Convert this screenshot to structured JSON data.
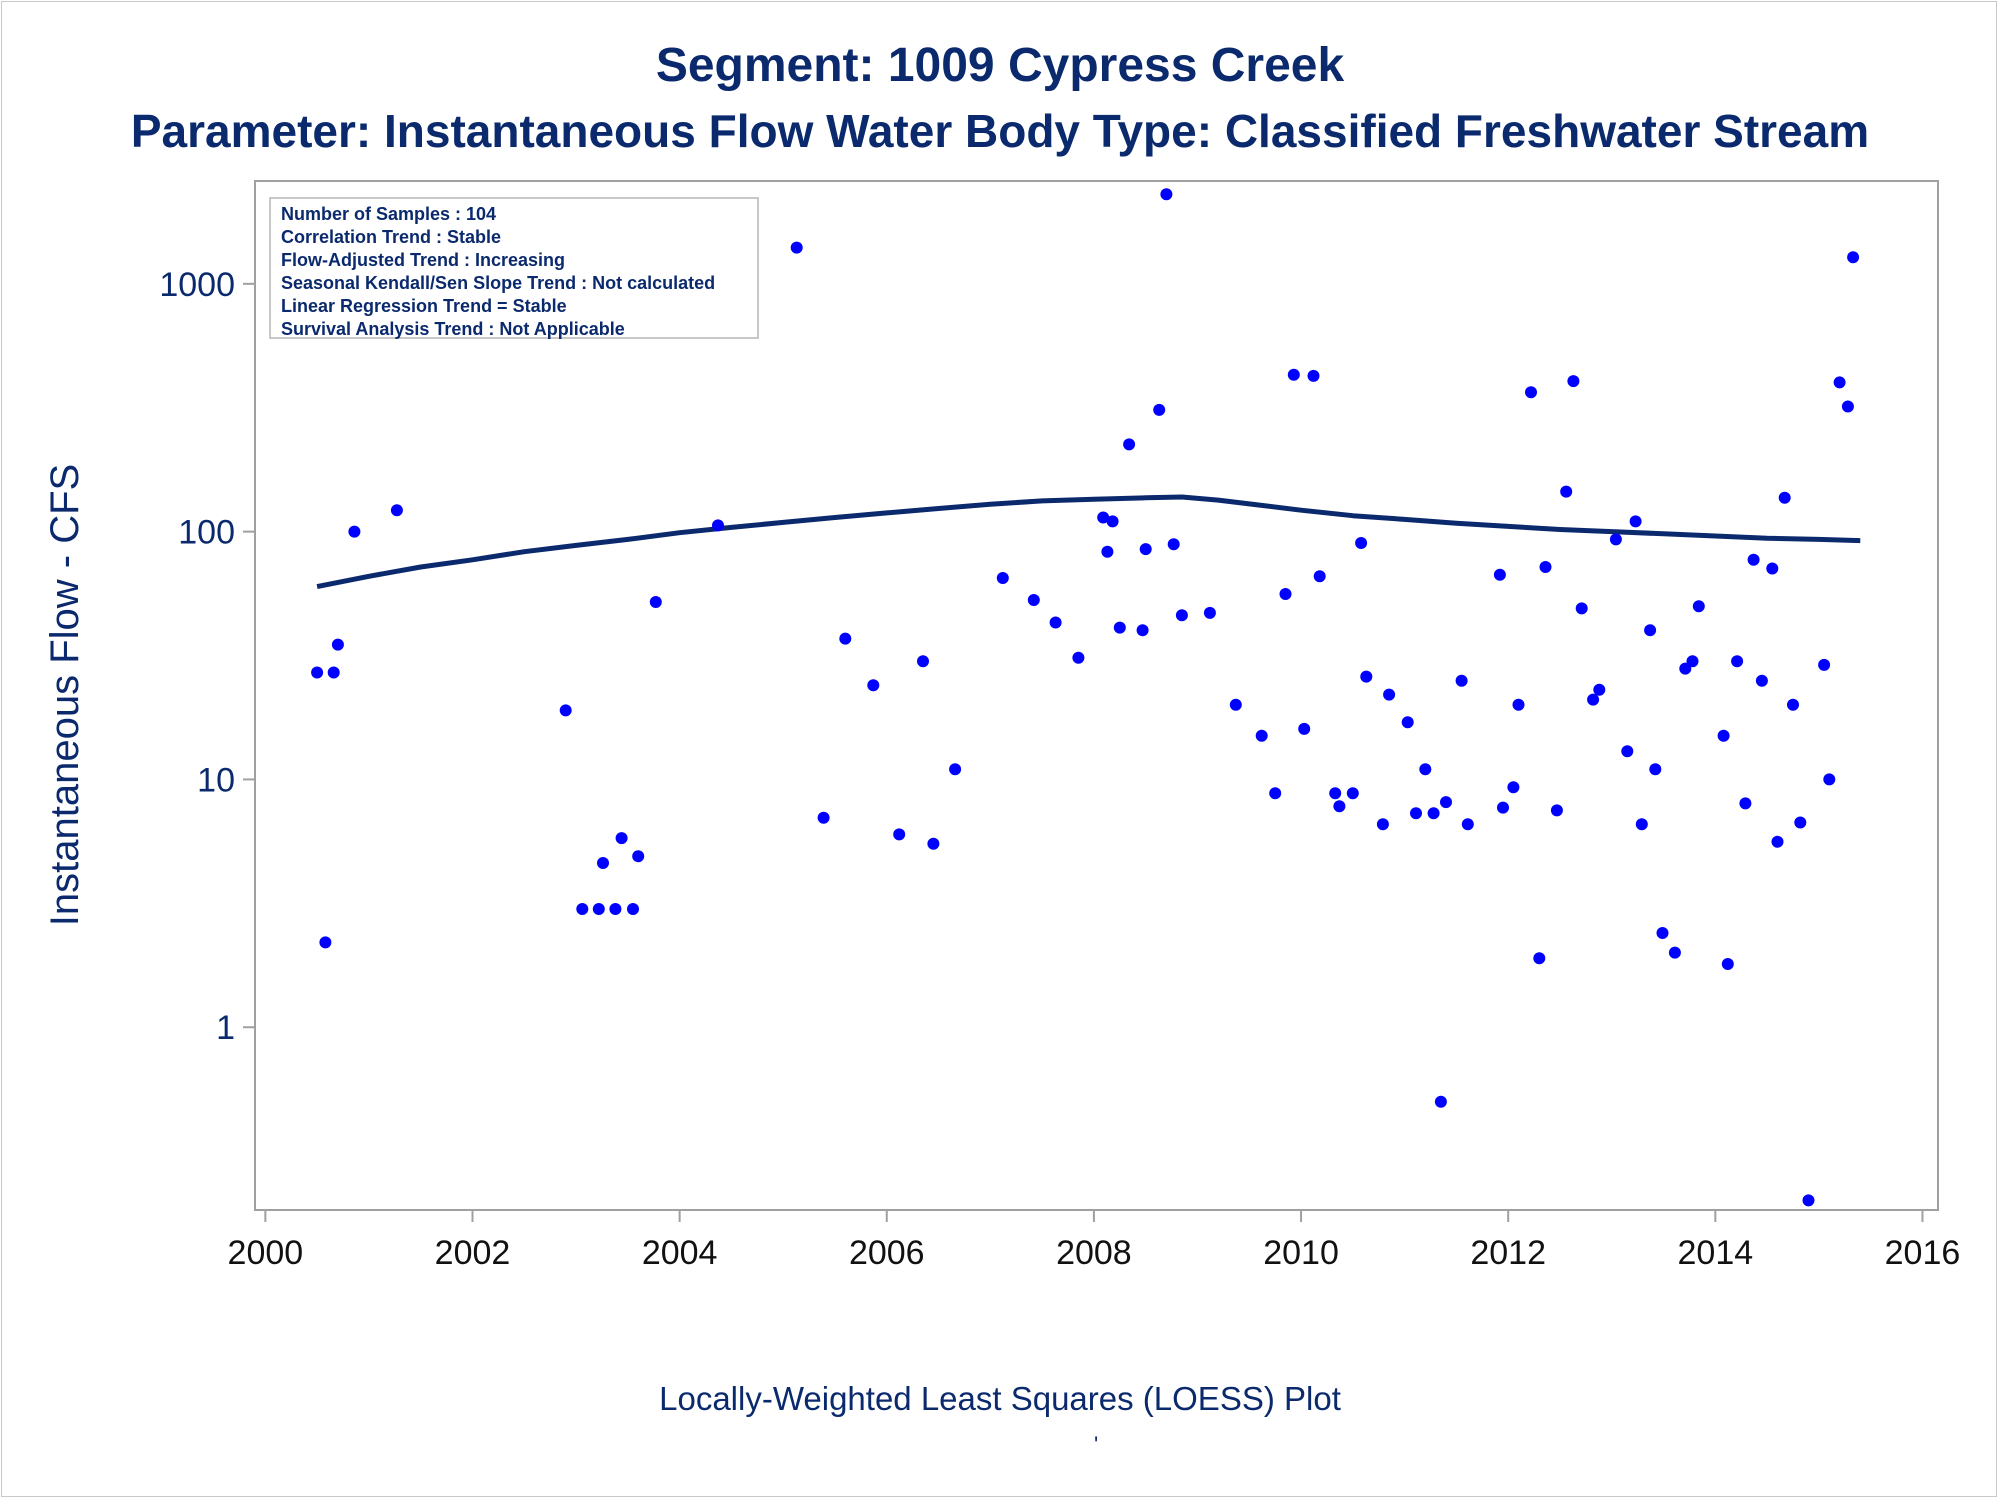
{
  "title": "Segment: 1009  Cypress Creek",
  "subtitle": "Parameter: Instantaneous Flow   Water Body Type: Classified Freshwater Stream",
  "footnote": "Locally-Weighted Least Squares (LOESS) Plot",
  "footnote_mark": "'",
  "stats": [
    "Number of Samples : 104",
    "Correlation Trend : Stable",
    "Flow-Adjusted Trend : Increasing",
    "Seasonal Kendall/Sen Slope Trend : Not calculated",
    "Linear Regression Trend = Stable",
    "Survival Analysis Trend : Not Applicable"
  ],
  "colors": {
    "text": "#0b2a6e",
    "points": "#0000ff",
    "loess_line": "#0b2a6e",
    "frame": "#a0a0a0"
  },
  "chart_data": {
    "type": "scatter",
    "title": "Segment: 1009  Cypress Creek",
    "subtitle": "Parameter: Instantaneous Flow   Water Body Type: Classified Freshwater Stream",
    "xlabel": "",
    "ylabel": "Instantaneous Flow - CFS",
    "yscale": "log",
    "xlim": [
      1999.9,
      2016.15
    ],
    "ylim": [
      0.183,
      2600
    ],
    "xticks": [
      2000,
      2002,
      2004,
      2006,
      2008,
      2010,
      2012,
      2014,
      2016
    ],
    "yticks": [
      1,
      10,
      100,
      1000
    ],
    "grid": false,
    "points": [
      [
        2000.5,
        27
      ],
      [
        2000.58,
        2.2
      ],
      [
        2000.66,
        27
      ],
      [
        2000.7,
        35
      ],
      [
        2000.86,
        100
      ],
      [
        2001.27,
        122
      ],
      [
        2002.9,
        19
      ],
      [
        2003.06,
        3
      ],
      [
        2003.22,
        3
      ],
      [
        2003.26,
        4.6
      ],
      [
        2003.38,
        3
      ],
      [
        2003.44,
        5.8
      ],
      [
        2003.55,
        3
      ],
      [
        2003.6,
        4.9
      ],
      [
        2003.77,
        52
      ],
      [
        2004.37,
        106
      ],
      [
        2005.13,
        1400
      ],
      [
        2005.39,
        7
      ],
      [
        2005.6,
        37
      ],
      [
        2005.87,
        24
      ],
      [
        2006.12,
        6
      ],
      [
        2006.35,
        30
      ],
      [
        2006.45,
        5.5
      ],
      [
        2006.66,
        11
      ],
      [
        2007.12,
        65
      ],
      [
        2007.42,
        53
      ],
      [
        2007.63,
        43
      ],
      [
        2007.85,
        31
      ],
      [
        2008.09,
        114
      ],
      [
        2008.13,
        83
      ],
      [
        2008.18,
        110
      ],
      [
        2008.25,
        41
      ],
      [
        2008.34,
        225
      ],
      [
        2008.47,
        40
      ],
      [
        2008.5,
        85
      ],
      [
        2008.63,
        310
      ],
      [
        2008.7,
        2300
      ],
      [
        2008.77,
        89
      ],
      [
        2008.85,
        46
      ],
      [
        2009.12,
        47
      ],
      [
        2009.37,
        20
      ],
      [
        2009.62,
        15
      ],
      [
        2009.75,
        8.8
      ],
      [
        2009.85,
        56
      ],
      [
        2009.93,
        430
      ],
      [
        2010.03,
        16
      ],
      [
        2010.12,
        425
      ],
      [
        2010.18,
        66
      ],
      [
        2010.33,
        8.8
      ],
      [
        2010.37,
        7.8
      ],
      [
        2010.5,
        8.8
      ],
      [
        2010.58,
        90
      ],
      [
        2010.63,
        26
      ],
      [
        2010.79,
        6.6
      ],
      [
        2010.85,
        22
      ],
      [
        2011.03,
        17
      ],
      [
        2011.11,
        7.3
      ],
      [
        2011.2,
        11
      ],
      [
        2011.28,
        7.3
      ],
      [
        2011.35,
        0.5
      ],
      [
        2011.4,
        8.1
      ],
      [
        2011.55,
        25
      ],
      [
        2011.61,
        6.6
      ],
      [
        2011.92,
        67
      ],
      [
        2011.95,
        7.7
      ],
      [
        2012.05,
        9.3
      ],
      [
        2012.1,
        20
      ],
      [
        2012.22,
        365
      ],
      [
        2012.3,
        1.9
      ],
      [
        2012.36,
        72
      ],
      [
        2012.47,
        7.5
      ],
      [
        2012.56,
        145
      ],
      [
        2012.63,
        405
      ],
      [
        2012.71,
        49
      ],
      [
        2012.82,
        21
      ],
      [
        2012.88,
        23
      ],
      [
        2013.04,
        93
      ],
      [
        2013.15,
        13
      ],
      [
        2013.23,
        110
      ],
      [
        2013.29,
        6.6
      ],
      [
        2013.37,
        40
      ],
      [
        2013.42,
        11
      ],
      [
        2013.49,
        2.4
      ],
      [
        2013.61,
        2
      ],
      [
        2013.71,
        28
      ],
      [
        2013.78,
        30
      ],
      [
        2013.84,
        50
      ],
      [
        2014.08,
        15
      ],
      [
        2014.12,
        1.8
      ],
      [
        2014.21,
        30
      ],
      [
        2014.29,
        8
      ],
      [
        2014.37,
        77
      ],
      [
        2014.45,
        25
      ],
      [
        2014.55,
        71
      ],
      [
        2014.6,
        5.6
      ],
      [
        2014.67,
        137
      ],
      [
        2014.75,
        20
      ],
      [
        2014.82,
        6.7
      ],
      [
        2014.9,
        0.2
      ],
      [
        2015.05,
        29
      ],
      [
        2015.1,
        10
      ],
      [
        2015.2,
        400
      ],
      [
        2015.28,
        320
      ],
      [
        2015.33,
        1280
      ]
    ],
    "loess": [
      [
        2000.5,
        60
      ],
      [
        2001.0,
        66
      ],
      [
        2001.5,
        72
      ],
      [
        2002.0,
        77
      ],
      [
        2002.5,
        83
      ],
      [
        2003.0,
        88
      ],
      [
        2003.5,
        93
      ],
      [
        2004.0,
        99
      ],
      [
        2004.5,
        104
      ],
      [
        2005.0,
        109
      ],
      [
        2005.5,
        114
      ],
      [
        2006.0,
        119
      ],
      [
        2006.5,
        124
      ],
      [
        2007.0,
        129
      ],
      [
        2007.5,
        133
      ],
      [
        2008.0,
        135
      ],
      [
        2008.5,
        137
      ],
      [
        2008.85,
        138
      ],
      [
        2009.2,
        134
      ],
      [
        2009.6,
        128
      ],
      [
        2010.0,
        122
      ],
      [
        2010.5,
        116
      ],
      [
        2011.0,
        112
      ],
      [
        2011.5,
        108
      ],
      [
        2012.0,
        105
      ],
      [
        2012.5,
        102
      ],
      [
        2013.0,
        100
      ],
      [
        2013.5,
        98
      ],
      [
        2014.0,
        96
      ],
      [
        2014.5,
        94
      ],
      [
        2015.0,
        93
      ],
      [
        2015.4,
        92
      ]
    ]
  }
}
